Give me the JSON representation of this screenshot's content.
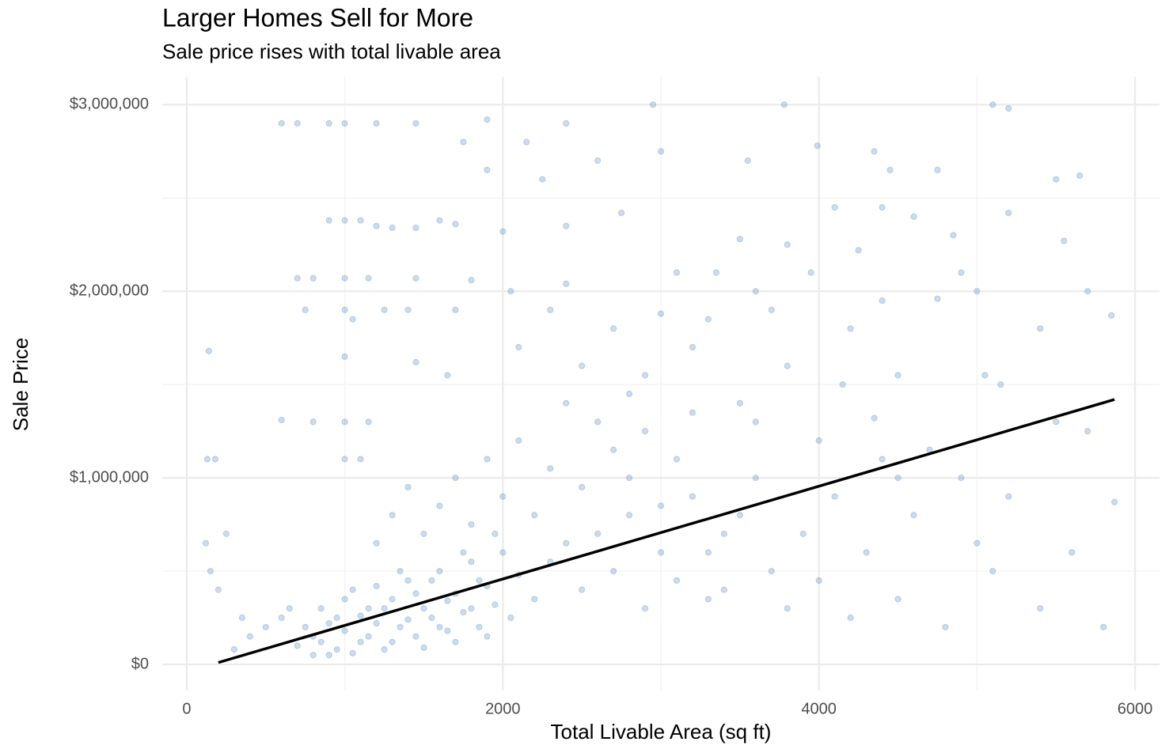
{
  "chart_data": {
    "type": "scatter",
    "title": "Larger Homes Sell for More",
    "subtitle": "Sale price rises with total livable area",
    "x_label": "Total Livable Area (sq ft)",
    "y_label": "Sale Price",
    "xlim": [
      -155,
      6155
    ],
    "ylim": [
      -140000,
      3150000
    ],
    "xticks": [
      0,
      2000,
      4000,
      6000
    ],
    "yticks": [
      {
        "value": 0,
        "label": "$0"
      },
      {
        "value": 1000000,
        "label": "$1,000,000"
      },
      {
        "value": 2000000,
        "label": "$2,000,000"
      },
      {
        "value": 3000000,
        "label": "$3,000,000"
      }
    ],
    "x_minor_ticks": [
      1000,
      3000,
      5000
    ],
    "y_minor_ticks": [
      500000,
      1500000,
      2500000
    ],
    "grid": true,
    "series": [
      {
        "type": "scatter",
        "color": "#4a7ebb",
        "x": [
          700,
          750,
          800,
          850,
          900,
          950,
          1000,
          1050,
          1100,
          1150,
          1200,
          1250,
          1300,
          1350,
          1400,
          1450,
          1500,
          1550,
          1600,
          1650,
          1700,
          1750,
          1800,
          1850,
          1900,
          1950,
          2000,
          2050,
          2100,
          2200,
          2300,
          2400,
          2500,
          2600,
          2700,
          2800,
          2900,
          3000,
          3100,
          3200,
          3300,
          3400,
          800,
          850,
          900,
          950,
          1000,
          1050,
          1100,
          1150,
          1200,
          1250,
          1300,
          1350,
          1400,
          1450,
          1500,
          1550,
          1600,
          1650,
          1700,
          1750,
          1800,
          1850,
          1900,
          1950,
          650,
          600,
          500,
          400,
          300,
          350,
          250,
          150,
          180,
          120,
          200,
          1200,
          1300,
          1400,
          1500,
          1600,
          1700,
          1800,
          1900,
          2000,
          2100,
          2200,
          2300,
          2400,
          2500,
          2600,
          2700,
          2800,
          2900,
          3000,
          3100,
          3200,
          3300,
          3400,
          3500,
          3600,
          3700,
          3800,
          3900,
          4000,
          4100,
          4200,
          4300,
          4400,
          4500,
          4600,
          4800,
          4900,
          5000,
          5100,
          5200,
          5400,
          5500,
          5600,
          5800,
          5870,
          600,
          700,
          900,
          1000,
          1200,
          1450,
          1900,
          2400,
          2150,
          1750,
          1900,
          2250,
          2600,
          2950,
          3000,
          3550,
          3780,
          3990,
          4350,
          4450,
          4750,
          5100,
          5200,
          5500,
          5650,
          900,
          1000,
          1100,
          1200,
          1300,
          1450,
          1600,
          1700,
          2000,
          2400,
          2750,
          3500,
          3800,
          4100,
          4400,
          4600,
          4850,
          5200,
          5550,
          700,
          800,
          1000,
          1150,
          1450,
          1800,
          2050,
          2400,
          3100,
          3350,
          3600,
          3950,
          4250,
          4900,
          5000,
          5700,
          750,
          1000,
          1050,
          1250,
          1400,
          1700,
          2300,
          2700,
          3000,
          3300,
          3700,
          4400,
          4750,
          5850,
          140,
          1000,
          1450,
          1650,
          2100,
          2500,
          2800,
          3200,
          3500,
          3800,
          4150,
          4350,
          4500,
          5050,
          5150,
          5700,
          5400,
          2900,
          3600,
          4700,
          4000,
          4500,
          4200,
          600,
          800,
          1000,
          1150,
          1100,
          1000,
          130
        ],
        "values": [
          100000,
          200000,
          150000,
          300000,
          50000,
          250000,
          180000,
          400000,
          120000,
          300000,
          220000,
          80000,
          350000,
          200000,
          450000,
          150000,
          300000,
          250000,
          500000,
          180000,
          380000,
          280000,
          550000,
          200000,
          420000,
          320000,
          600000,
          250000,
          480000,
          350000,
          550000,
          650000,
          400000,
          700000,
          500000,
          800000,
          300000,
          600000,
          450000,
          900000,
          350000,
          700000,
          50000,
          120000,
          220000,
          80000,
          350000,
          60000,
          260000,
          150000,
          420000,
          300000,
          120000,
          500000,
          240000,
          380000,
          90000,
          450000,
          200000,
          340000,
          120000,
          600000,
          300000,
          450000,
          150000,
          700000,
          300000,
          250000,
          200000,
          150000,
          80000,
          250000,
          700000,
          500000,
          1100000,
          650000,
          400000,
          650000,
          800000,
          950000,
          700000,
          850000,
          1000000,
          750000,
          1100000,
          900000,
          1200000,
          800000,
          1050000,
          1400000,
          950000,
          1300000,
          1150000,
          1000000,
          1250000,
          850000,
          1100000,
          1350000,
          600000,
          400000,
          800000,
          1000000,
          500000,
          300000,
          700000,
          450000,
          900000,
          250000,
          600000,
          1100000,
          350000,
          800000,
          200000,
          1000000,
          650000,
          500000,
          900000,
          300000,
          1300000,
          600000,
          200000,
          870000,
          2900000,
          2900000,
          2900000,
          2900000,
          2900000,
          2900000,
          2920000,
          2900000,
          2800000,
          2800000,
          2650000,
          2600000,
          2700000,
          3000000,
          2750000,
          2700000,
          3000000,
          2780000,
          2750000,
          2650000,
          2650000,
          3000000,
          2980000,
          2600000,
          2620000,
          2380000,
          2380000,
          2380000,
          2350000,
          2340000,
          2340000,
          2380000,
          2360000,
          2320000,
          2350000,
          2420000,
          2280000,
          2250000,
          2450000,
          2450000,
          2400000,
          2300000,
          2420000,
          2270000,
          2070000,
          2070000,
          2070000,
          2070000,
          2070000,
          2060000,
          2000000,
          2040000,
          2100000,
          2100000,
          2000000,
          2100000,
          2220000,
          2100000,
          2000000,
          2000000,
          1900000,
          1900000,
          1850000,
          1900000,
          1900000,
          1900000,
          1900000,
          1800000,
          1880000,
          1850000,
          1900000,
          1950000,
          1960000,
          1870000,
          1680000,
          1650000,
          1620000,
          1550000,
          1700000,
          1600000,
          1450000,
          1700000,
          1400000,
          1600000,
          1500000,
          1320000,
          1550000,
          1550000,
          1500000,
          1250000,
          1800000,
          1550000,
          1300000,
          1150000,
          1200000,
          1000000,
          1800000,
          1310000,
          1300000,
          1300000,
          1300000,
          1100000,
          1100000,
          1100000
        ]
      },
      {
        "type": "line",
        "color": "#000000",
        "x": [
          200,
          5870
        ],
        "values": [
          10000,
          1420000
        ]
      }
    ]
  }
}
